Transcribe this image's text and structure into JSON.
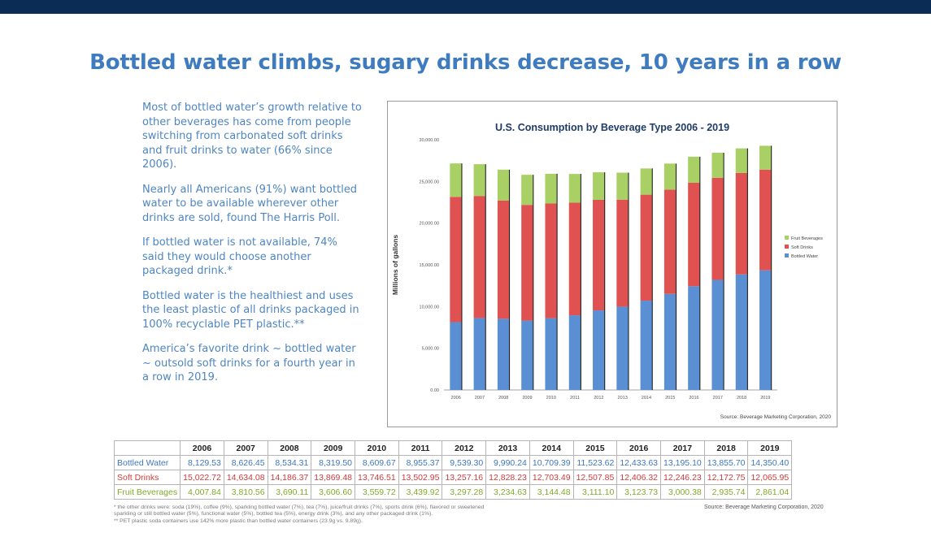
{
  "headline": "Bottled water climbs, sugary drinks decrease, 10 years in a row",
  "paragraphs": [
    "Most of bottled water’s growth relative to other beverages has come from people switching from carbonated soft drinks and fruit drinks to water (66% since 2006).",
    "Nearly all Americans (91%) want bottled water to be available wherever other drinks are sold, found The Harris Poll.",
    "If bottled water is not available, 74% said they would choose another packaged drink.*",
    "Bottled water is the healthiest and uses the least plastic of all drinks packaged in 100% recyclable PET plastic.**",
    "America’s favorite drink ~ bottled water ~ outsold soft drinks for a fourth year in a row in 2019."
  ],
  "chart_data": {
    "type": "bar",
    "stacked": true,
    "title": "U.S. Consumption by Beverage Type 2006 - 2019",
    "ylabel": "Millions of gallons",
    "xlabel": "",
    "ylim": [
      0,
      30000
    ],
    "yticks": [
      "0.00",
      "5,000.00",
      "10,000.00",
      "15,000.00",
      "20,000.00",
      "25,000.00",
      "30,000.00"
    ],
    "categories": [
      "2006",
      "2007",
      "2008",
      "2009",
      "2010",
      "2011",
      "2012",
      "2013",
      "2014",
      "2015",
      "2016",
      "2017",
      "2018",
      "2019"
    ],
    "series": [
      {
        "name": "Bottled Water",
        "color": "#5b8fd3",
        "values": [
          8129.53,
          8626.45,
          8534.31,
          8319.5,
          8609.67,
          8955.37,
          9539.3,
          9990.24,
          10709.39,
          11523.62,
          12433.63,
          13195.1,
          13855.7,
          14350.4
        ]
      },
      {
        "name": "Soft Drinks",
        "color": "#e05252",
        "values": [
          15022.72,
          14634.08,
          14186.37,
          13869.48,
          13746.51,
          13502.95,
          13257.16,
          12828.23,
          12703.49,
          12507.85,
          12406.32,
          12246.23,
          12172.75,
          12065.95
        ]
      },
      {
        "name": "Fruit Beverages",
        "color": "#a9d065",
        "values": [
          4007.84,
          3810.56,
          3690.11,
          3606.6,
          3559.72,
          3439.92,
          3297.28,
          3234.63,
          3144.48,
          3111.1,
          3123.73,
          3000.38,
          2935.74,
          2861.04
        ]
      }
    ],
    "legend_position": "right",
    "grid": false,
    "source": "Source: Beverage Marketing Corporation, 2020"
  },
  "table": {
    "headers": [
      "",
      "2006",
      "2007",
      "2008",
      "2009",
      "2010",
      "2011",
      "2012",
      "2013",
      "2014",
      "2015",
      "2016",
      "2017",
      "2018",
      "2019"
    ],
    "rows": [
      {
        "label": "Bottled Water",
        "cells": [
          "8,129.53",
          "8,626.45",
          "8,534.31",
          "8,319.50",
          "8,609.67",
          "8,955.37",
          "9,539.30",
          "9,990.24",
          "10,709.39",
          "11,523.62",
          "12,433.63",
          "13,195.10",
          "13,855.70",
          "14,350.40"
        ]
      },
      {
        "label": "Soft Drinks",
        "cells": [
          "15,022.72",
          "14,634.08",
          "14,186.37",
          "13,869.48",
          "13,746.51",
          "13,502.95",
          "13,257.16",
          "12,828.23",
          "12,703.49",
          "12,507.85",
          "12,406.32",
          "12,246.23",
          "12,172.75",
          "12,065.95"
        ]
      },
      {
        "label": "Fruit Beverages",
        "cells": [
          "4,007.84",
          "3,810.56",
          "3,690.11",
          "3,606.60",
          "3,559.72",
          "3,439.92",
          "3,297.28",
          "3,234.63",
          "3,144.48",
          "3,111.10",
          "3,123.73",
          "3,000.38",
          "2,935.74",
          "2,861.04"
        ]
      }
    ],
    "source": "Source: Beverage Marketing Corporation, 2020"
  },
  "footnotes": [
    "* the other drinks were: soda (19%), coffee (9%), sparkling bottled water (7%), tea (7%), juice/fruit drinks (7%), sports drink (6%), flavored or sweetened",
    "sparkling or still bottled water (5%), functional water (5%), bottled tea (5%), energy drink (3%), and any other packaged drink (1%).",
    "** PET plastic soda containers use 142% more plastic than bottled water containers (23.9g vs. 9.89g)."
  ]
}
